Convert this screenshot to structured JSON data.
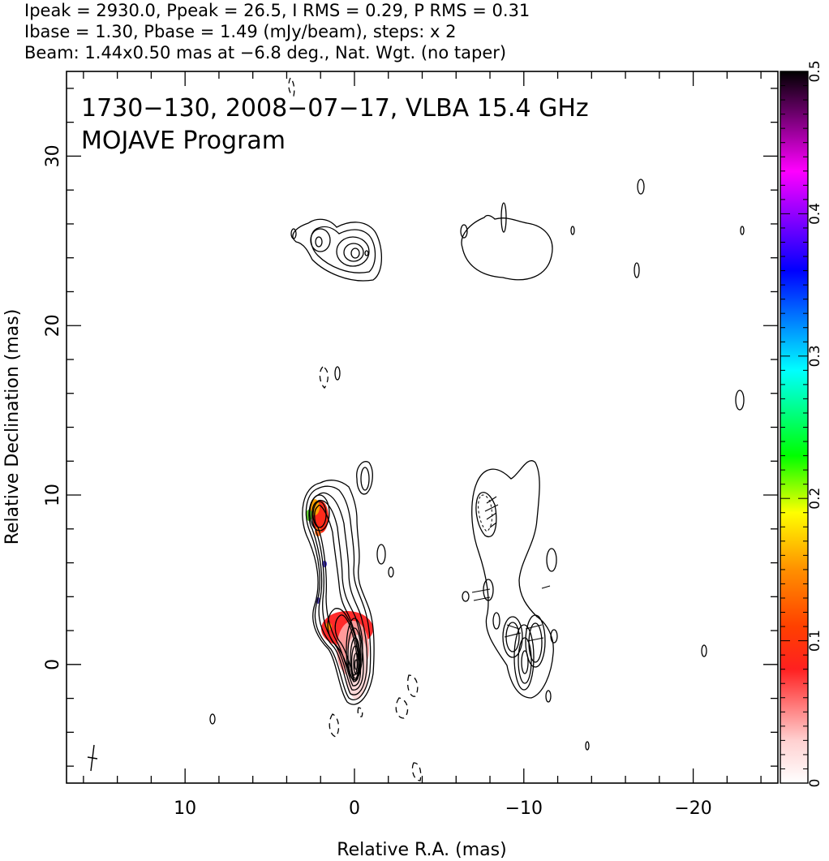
{
  "header": {
    "line1": "Ipeak = 2930.0, Ppeak = 26.5, I RMS = 0.29, P RMS = 0.31",
    "line2": "Ibase = 1.30, Pbase = 1.49 (mJy/beam), steps: x 2",
    "line3": "Beam: 1.44x0.50 mas at −6.8 deg., Nat. Wgt. (no taper)"
  },
  "plot": {
    "title_line1": "1730−130, 2008−07−17, VLBA 15.4 GHz",
    "title_line2": "MOJAVE Program"
  },
  "colors": {
    "axis": "#000000",
    "contour": "#000000",
    "colorbar_stops": [
      "#ffffff",
      "#ffd0d0",
      "#ff0000",
      "#ff8000",
      "#ffff00",
      "#00ff00",
      "#00ffff",
      "#0000ff",
      "#ff00ff",
      "#000000"
    ]
  },
  "chart_data": {
    "type": "heatmap",
    "xlabel": "Relative R.A. (mas)",
    "ylabel": "Relative Declination (mas)",
    "xlim": [
      17,
      -25
    ],
    "ylim": [
      -7,
      35
    ],
    "x_ticks": [
      {
        "value": 10,
        "label": "10"
      },
      {
        "value": 0,
        "label": "0"
      },
      {
        "value": -10,
        "label": "−10"
      },
      {
        "value": -20,
        "label": "−20"
      }
    ],
    "y_ticks": [
      {
        "value": 0,
        "label": "0"
      },
      {
        "value": 10,
        "label": "10"
      },
      {
        "value": 20,
        "label": "20"
      },
      {
        "value": 30,
        "label": "30"
      }
    ],
    "colorbar": {
      "range": [
        0,
        0.5
      ],
      "ticks": [
        {
          "value": 0,
          "label": "0"
        },
        {
          "value": 0.1,
          "label": "0.1"
        },
        {
          "value": 0.2,
          "label": "0.2"
        },
        {
          "value": 0.3,
          "label": "0.3"
        },
        {
          "value": 0.4,
          "label": "0.4"
        },
        {
          "value": 0.5,
          "label": "0.5"
        }
      ]
    },
    "core": {
      "x": 0,
      "y": 0
    },
    "beam": {
      "major": 1.44,
      "minor": 0.5,
      "pa": -6.8
    }
  }
}
